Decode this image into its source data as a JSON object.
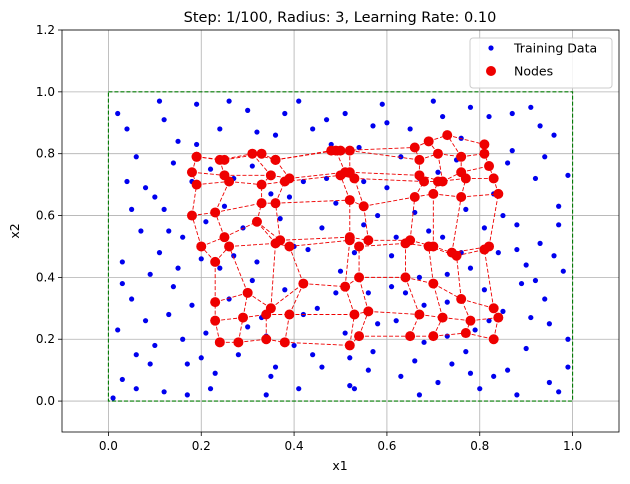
{
  "chart_data": {
    "type": "scatter",
    "title": "Step: 1/100, Radius: 3, Learning Rate: 0.10",
    "xlabel": "x1",
    "ylabel": "x2",
    "xlim": [
      -0.1,
      1.1
    ],
    "ylim": [
      -0.1,
      1.2
    ],
    "xticks": [
      "0.0",
      "0.2",
      "0.4",
      "0.6",
      "0.8",
      "1.0"
    ],
    "yticks": [
      "0.0",
      "0.2",
      "0.4",
      "0.6",
      "0.8",
      "1.0",
      "1.2"
    ],
    "grid": true,
    "legend": {
      "placement": "top-right",
      "entries": [
        "Training Data",
        "Nodes"
      ]
    },
    "colors": {
      "training": "#0000ee",
      "nodes": "#ee0000",
      "links": "#ee0000",
      "boundary": "#007a00"
    },
    "boundary": {
      "x": [
        0,
        1
      ],
      "y": [
        0,
        1
      ]
    },
    "grid_shape": [
      10,
      10
    ],
    "series": [
      {
        "name": "Training Data",
        "points": [
          [
            0.02,
            0.93
          ],
          [
            0.06,
            0.79
          ],
          [
            0.11,
            0.97
          ],
          [
            0.07,
            0.55
          ],
          [
            0.03,
            0.45
          ],
          [
            0.05,
            0.33
          ],
          [
            0.02,
            0.23
          ],
          [
            0.06,
            0.15
          ],
          [
            0.03,
            0.07
          ],
          [
            0.01,
            0.01
          ],
          [
            0.04,
            0.88
          ],
          [
            0.08,
            0.69
          ],
          [
            0.12,
            0.62
          ],
          [
            0.09,
            0.41
          ],
          [
            0.13,
            0.28
          ],
          [
            0.1,
            0.18
          ],
          [
            0.12,
            0.03
          ],
          [
            0.15,
            0.84
          ],
          [
            0.16,
            0.53
          ],
          [
            0.18,
            0.71
          ],
          [
            0.14,
            0.37
          ],
          [
            0.17,
            0.12
          ],
          [
            0.19,
            0.96
          ],
          [
            0.2,
            0.46
          ],
          [
            0.21,
            0.22
          ],
          [
            0.22,
            0.04
          ],
          [
            0.24,
            0.88
          ],
          [
            0.25,
            0.63
          ],
          [
            0.26,
            0.33
          ],
          [
            0.28,
            0.15
          ],
          [
            0.3,
            0.94
          ],
          [
            0.31,
            0.76
          ],
          [
            0.32,
            0.45
          ],
          [
            0.33,
            0.27
          ],
          [
            0.35,
            0.08
          ],
          [
            0.36,
            0.86
          ],
          [
            0.37,
            0.59
          ],
          [
            0.38,
            0.36
          ],
          [
            0.4,
            0.18
          ],
          [
            0.41,
            0.97
          ],
          [
            0.42,
            0.71
          ],
          [
            0.43,
            0.49
          ],
          [
            0.45,
            0.3
          ],
          [
            0.46,
            0.11
          ],
          [
            0.47,
            0.91
          ],
          [
            0.49,
            0.64
          ],
          [
            0.5,
            0.42
          ],
          [
            0.51,
            0.22
          ],
          [
            0.52,
            0.05
          ],
          [
            0.54,
            0.82
          ],
          [
            0.55,
            0.57
          ],
          [
            0.56,
            0.35
          ],
          [
            0.57,
            0.16
          ],
          [
            0.59,
            0.96
          ],
          [
            0.6,
            0.69
          ],
          [
            0.61,
            0.47
          ],
          [
            0.62,
            0.26
          ],
          [
            0.63,
            0.08
          ],
          [
            0.65,
            0.88
          ],
          [
            0.66,
            0.61
          ],
          [
            0.67,
            0.4
          ],
          [
            0.68,
            0.19
          ],
          [
            0.7,
            0.97
          ],
          [
            0.71,
            0.74
          ],
          [
            0.72,
            0.53
          ],
          [
            0.73,
            0.32
          ],
          [
            0.74,
            0.12
          ],
          [
            0.76,
            0.85
          ],
          [
            0.77,
            0.62
          ],
          [
            0.78,
            0.43
          ],
          [
            0.79,
            0.23
          ],
          [
            0.8,
            0.04
          ],
          [
            0.82,
            0.92
          ],
          [
            0.83,
            0.67
          ],
          [
            0.84,
            0.48
          ],
          [
            0.85,
            0.29
          ],
          [
            0.86,
            0.1
          ],
          [
            0.87,
            0.81
          ],
          [
            0.88,
            0.57
          ],
          [
            0.89,
            0.38
          ],
          [
            0.9,
            0.17
          ],
          [
            0.91,
            0.95
          ],
          [
            0.92,
            0.72
          ],
          [
            0.93,
            0.51
          ],
          [
            0.94,
            0.33
          ],
          [
            0.95,
            0.06
          ],
          [
            0.96,
            0.86
          ],
          [
            0.97,
            0.63
          ],
          [
            0.98,
            0.42
          ],
          [
            0.99,
            0.2
          ],
          [
            0.97,
            0.03
          ],
          [
            0.99,
            0.73
          ],
          [
            0.95,
            0.25
          ],
          [
            0.93,
            0.89
          ],
          [
            0.9,
            0.44
          ],
          [
            0.88,
            0.02
          ],
          [
            0.85,
            0.6
          ],
          [
            0.81,
            0.36
          ],
          [
            0.78,
            0.09
          ],
          [
            0.75,
            0.78
          ],
          [
            0.73,
            0.21
          ],
          [
            0.69,
            0.55
          ],
          [
            0.66,
            0.13
          ],
          [
            0.64,
            0.35
          ],
          [
            0.6,
            0.9
          ],
          [
            0.58,
            0.25
          ],
          [
            0.55,
            0.71
          ],
          [
            0.53,
            0.04
          ],
          [
            0.48,
            0.83
          ],
          [
            0.44,
            0.15
          ],
          [
            0.4,
            0.5
          ],
          [
            0.38,
            0.93
          ],
          [
            0.34,
            0.21
          ],
          [
            0.31,
            0.39
          ],
          [
            0.27,
            0.72
          ],
          [
            0.23,
            0.09
          ],
          [
            0.21,
            0.58
          ],
          [
            0.18,
            0.31
          ],
          [
            0.14,
            0.77
          ],
          [
            0.11,
            0.48
          ],
          [
            0.08,
            0.26
          ],
          [
            0.05,
            0.62
          ],
          [
            0.03,
            0.38
          ],
          [
            0.06,
            0.04
          ],
          [
            0.12,
            0.91
          ],
          [
            0.16,
            0.2
          ],
          [
            0.19,
            0.83
          ],
          [
            0.24,
            0.43
          ],
          [
            0.29,
            0.56
          ],
          [
            0.34,
            0.02
          ],
          [
            0.39,
            0.66
          ],
          [
            0.44,
            0.88
          ],
          [
            0.49,
            0.35
          ],
          [
            0.53,
            0.48
          ],
          [
            0.58,
            0.6
          ],
          [
            0.63,
            0.79
          ],
          [
            0.68,
            0.31
          ],
          [
            0.72,
            0.92
          ],
          [
            0.77,
            0.16
          ],
          [
            0.81,
            0.56
          ],
          [
            0.86,
            0.77
          ],
          [
            0.91,
            0.27
          ],
          [
            0.96,
            0.47
          ],
          [
            0.1,
            0.66
          ],
          [
            0.15,
            0.43
          ],
          [
            0.2,
            0.14
          ],
          [
            0.26,
            0.97
          ],
          [
            0.3,
            0.24
          ],
          [
            0.35,
            0.67
          ],
          [
            0.41,
            0.04
          ],
          [
            0.46,
            0.56
          ],
          [
            0.51,
            0.93
          ],
          [
            0.56,
            0.1
          ],
          [
            0.61,
            0.37
          ],
          [
            0.67,
            0.72
          ],
          [
            0.71,
            0.06
          ],
          [
            0.76,
            0.48
          ],
          [
            0.82,
            0.26
          ],
          [
            0.87,
            0.93
          ],
          [
            0.92,
            0.39
          ],
          [
            0.97,
            0.57
          ],
          [
            0.04,
            0.71
          ],
          [
            0.09,
            0.12
          ],
          [
            0.13,
            0.55
          ],
          [
            0.17,
            0.02
          ],
          [
            0.22,
            0.75
          ],
          [
            0.27,
            0.47
          ],
          [
            0.32,
            0.87
          ],
          [
            0.36,
            0.11
          ],
          [
            0.42,
            0.28
          ],
          [
            0.47,
            0.72
          ],
          [
            0.52,
            0.14
          ],
          [
            0.57,
            0.89
          ],
          [
            0.62,
            0.53
          ],
          [
            0.67,
            0.02
          ],
          [
            0.73,
            0.41
          ],
          [
            0.78,
            0.95
          ],
          [
            0.83,
            0.08
          ],
          [
            0.88,
            0.49
          ],
          [
            0.94,
            0.79
          ],
          [
            0.99,
            0.11
          ]
        ]
      },
      {
        "name": "Nodes",
        "rows": [
          [
            [
              0.24,
              0.19
            ],
            [
              0.28,
              0.19
            ],
            [
              0.34,
              0.2
            ],
            [
              0.38,
              0.19
            ],
            [
              0.52,
              0.18
            ],
            [
              0.54,
              0.21
            ],
            [
              0.65,
              0.21
            ],
            [
              0.7,
              0.21
            ],
            [
              0.77,
              0.22
            ],
            [
              0.83,
              0.2
            ]
          ],
          [
            [
              0.23,
              0.26
            ],
            [
              0.29,
              0.27
            ],
            [
              0.34,
              0.28
            ],
            [
              0.39,
              0.28
            ],
            [
              0.53,
              0.28
            ],
            [
              0.56,
              0.29
            ],
            [
              0.67,
              0.28
            ],
            [
              0.72,
              0.27
            ],
            [
              0.78,
              0.26
            ],
            [
              0.84,
              0.27
            ]
          ],
          [
            [
              0.23,
              0.32
            ],
            [
              0.3,
              0.35
            ],
            [
              0.35,
              0.3
            ],
            [
              0.42,
              0.38
            ],
            [
              0.51,
              0.37
            ],
            [
              0.54,
              0.4
            ],
            [
              0.64,
              0.4
            ],
            [
              0.7,
              0.38
            ],
            [
              0.76,
              0.33
            ],
            [
              0.83,
              0.3
            ]
          ],
          [
            [
              0.23,
              0.45
            ],
            [
              0.26,
              0.5
            ],
            [
              0.36,
              0.51
            ],
            [
              0.39,
              0.5
            ],
            [
              0.52,
              0.52
            ],
            [
              0.54,
              0.5
            ],
            [
              0.64,
              0.51
            ],
            [
              0.69,
              0.5
            ],
            [
              0.75,
              0.47
            ],
            [
              0.81,
              0.49
            ]
          ],
          [
            [
              0.2,
              0.5
            ],
            [
              0.25,
              0.53
            ],
            [
              0.32,
              0.58
            ],
            [
              0.37,
              0.52
            ],
            [
              0.52,
              0.53
            ],
            [
              0.56,
              0.52
            ],
            [
              0.65,
              0.52
            ],
            [
              0.7,
              0.5
            ],
            [
              0.74,
              0.48
            ],
            [
              0.82,
              0.5
            ]
          ],
          [
            [
              0.18,
              0.6
            ],
            [
              0.23,
              0.61
            ],
            [
              0.33,
              0.64
            ],
            [
              0.36,
              0.64
            ],
            [
              0.52,
              0.65
            ],
            [
              0.55,
              0.63
            ],
            [
              0.66,
              0.66
            ],
            [
              0.7,
              0.67
            ],
            [
              0.76,
              0.66
            ],
            [
              0.84,
              0.67
            ]
          ],
          [
            [
              0.19,
              0.7
            ],
            [
              0.26,
              0.71
            ],
            [
              0.33,
              0.7
            ],
            [
              0.38,
              0.71
            ],
            [
              0.5,
              0.73
            ],
            [
              0.53,
              0.72
            ],
            [
              0.68,
              0.71
            ],
            [
              0.71,
              0.71
            ],
            [
              0.77,
              0.72
            ],
            [
              0.83,
              0.72
            ]
          ],
          [
            [
              0.18,
              0.74
            ],
            [
              0.25,
              0.73
            ],
            [
              0.35,
              0.73
            ],
            [
              0.39,
              0.72
            ],
            [
              0.51,
              0.74
            ],
            [
              0.52,
              0.74
            ],
            [
              0.67,
              0.73
            ],
            [
              0.72,
              0.71
            ],
            [
              0.76,
              0.74
            ],
            [
              0.82,
              0.76
            ]
          ],
          [
            [
              0.19,
              0.79
            ],
            [
              0.24,
              0.78
            ],
            [
              0.31,
              0.8
            ],
            [
              0.36,
              0.78
            ],
            [
              0.49,
              0.81
            ],
            [
              0.52,
              0.81
            ],
            [
              0.67,
              0.78
            ],
            [
              0.71,
              0.8
            ],
            [
              0.76,
              0.79
            ],
            [
              0.81,
              0.8
            ]
          ],
          [
            [
              0.19,
              0.79
            ],
            [
              0.25,
              0.78
            ],
            [
              0.33,
              0.8
            ],
            [
              0.36,
              0.78
            ],
            [
              0.48,
              0.81
            ],
            [
              0.5,
              0.81
            ],
            [
              0.66,
              0.82
            ],
            [
              0.69,
              0.84
            ],
            [
              0.73,
              0.86
            ],
            [
              0.81,
              0.83
            ]
          ]
        ]
      }
    ]
  }
}
